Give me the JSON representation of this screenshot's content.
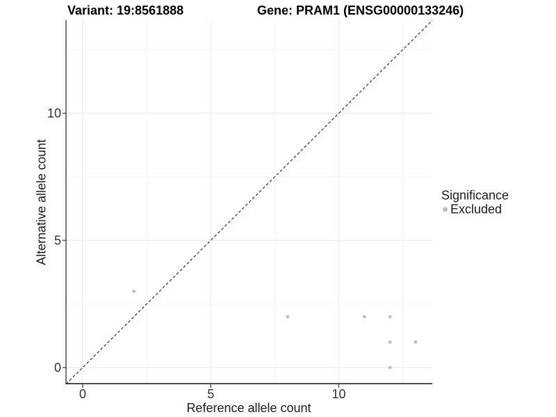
{
  "title": {
    "variant": "Variant: 19:8561888",
    "gene": "Gene: PRAM1 (ENSG00000133246)"
  },
  "chart_data": {
    "type": "scatter",
    "xlabel": "Reference allele count",
    "ylabel": "Alternative allele count",
    "xlim": [
      -0.65,
      13.65
    ],
    "ylim": [
      -0.66,
      13.66
    ],
    "x_ticks": [
      0,
      5,
      10
    ],
    "y_ticks": [
      0,
      5,
      10
    ],
    "x_minor_ticks": [
      2.5,
      7.5,
      12.5
    ],
    "y_minor_ticks": [
      2.5,
      7.5,
      12.5
    ],
    "grid": true,
    "identity_line": {
      "style": "dashed",
      "from": -0.65,
      "to": 13.65
    },
    "series": [
      {
        "name": "Excluded",
        "color": "#bdbdbd",
        "points": [
          [
            2,
            3
          ],
          [
            8,
            2
          ],
          [
            11,
            2
          ],
          [
            12,
            2
          ],
          [
            12,
            1
          ],
          [
            13,
            1
          ],
          [
            12,
            0
          ]
        ]
      }
    ],
    "legend": {
      "title": "Significance",
      "position": "right",
      "items": [
        {
          "label": "Excluded",
          "color": "#bdbdbd"
        }
      ]
    }
  },
  "colors": {
    "background": "#ffffff",
    "grid_major": "#e8e8e8",
    "grid_minor": "#f4f4f4",
    "axis_line_left": "#1a1a1a",
    "axis_line_bottom": "#4d4d4d",
    "tick_mark": "#333333",
    "identity_line": "#1a1a1a",
    "point": "#bdbdbd"
  }
}
